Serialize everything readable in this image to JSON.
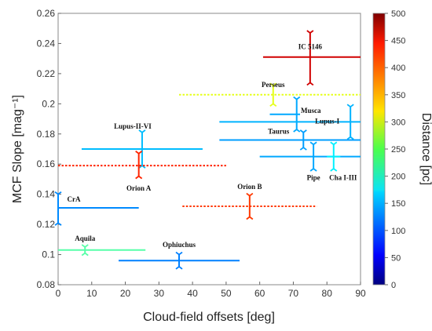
{
  "chart_data": {
    "type": "scatter",
    "xlabel": "Cloud-field offsets [deg]",
    "ylabel": "MCF Slope [mag⁻¹]",
    "xlim": [
      0,
      90
    ],
    "ylim": [
      0.08,
      0.26
    ],
    "xticks": [
      "0",
      "10",
      "20",
      "30",
      "40",
      "50",
      "60",
      "70",
      "80",
      "90"
    ],
    "yticks": [
      "0.08",
      "0.1",
      "0.12",
      "0.14",
      "0.16",
      "0.18",
      "0.2",
      "0.22",
      "0.24",
      "0.26"
    ],
    "grid": false,
    "colorbar": {
      "label": "Distance [pc]",
      "range": [
        0,
        500
      ],
      "ticks": [
        "0",
        "50",
        "100",
        "150",
        "200",
        "250",
        "300",
        "350",
        "400",
        "450",
        "500"
      ],
      "colormap": "jet"
    },
    "clouds": [
      {
        "name": "IC 5146",
        "x": 75,
        "y": 0.231,
        "x_range": [
          61,
          90
        ],
        "y_range": [
          0.214,
          0.247
        ],
        "distance": 460,
        "dashed": false
      },
      {
        "name": "Perseus",
        "x": 64,
        "y": 0.206,
        "x_range": [
          36,
          90
        ],
        "y_range": [
          0.2,
          0.212
        ],
        "distance": 300,
        "dashed": true
      },
      {
        "name": "Musca",
        "x": 71,
        "y": 0.193,
        "x_range": [
          63,
          72
        ],
        "y_range": [
          0.183,
          0.203
        ],
        "distance": 145,
        "dashed": false
      },
      {
        "name": "Lupus-I",
        "x": 87,
        "y": 0.188,
        "x_range": [
          48,
          90
        ],
        "y_range": [
          0.178,
          0.198
        ],
        "distance": 150,
        "dashed": false
      },
      {
        "name": "Taurus",
        "x": 73,
        "y": 0.176,
        "x_range": [
          48,
          90
        ],
        "y_range": [
          0.171,
          0.181
        ],
        "distance": 140,
        "dashed": false
      },
      {
        "name": "Pipe",
        "x": 76,
        "y": 0.165,
        "x_range": [
          60,
          90
        ],
        "y_range": [
          0.157,
          0.173
        ],
        "distance": 145,
        "dashed": false
      },
      {
        "name": "Cha I-III",
        "x": 82,
        "y": 0.165,
        "x_range": [
          80,
          84
        ],
        "y_range": [
          0.157,
          0.173
        ],
        "distance": 180,
        "dashed": false
      },
      {
        "name": "Lupus-II-VI",
        "x": 25,
        "y": 0.17,
        "x_range": [
          7,
          43
        ],
        "y_range": [
          0.159,
          0.181
        ],
        "distance": 155,
        "dashed": false
      },
      {
        "name": "Orion A",
        "x": 24,
        "y": 0.159,
        "x_range": [
          0,
          50
        ],
        "y_range": [
          0.152,
          0.167
        ],
        "distance": 420,
        "dashed": true
      },
      {
        "name": "Orion B",
        "x": 57,
        "y": 0.132,
        "x_range": [
          37,
          77
        ],
        "y_range": [
          0.125,
          0.139
        ],
        "distance": 410,
        "dashed": true
      },
      {
        "name": "CrA",
        "x": 0,
        "y": 0.131,
        "x_range": [
          0,
          24
        ],
        "y_range": [
          0.121,
          0.14
        ],
        "distance": 130,
        "dashed": false
      },
      {
        "name": "Aquila",
        "x": 8,
        "y": 0.103,
        "x_range": [
          0,
          26
        ],
        "y_range": [
          0.101,
          0.105
        ],
        "distance": 230,
        "dashed": false
      },
      {
        "name": "Ophiuchus",
        "x": 36,
        "y": 0.096,
        "x_range": [
          18,
          54
        ],
        "y_range": [
          0.092,
          0.1
        ],
        "distance": 125,
        "dashed": false
      }
    ]
  }
}
